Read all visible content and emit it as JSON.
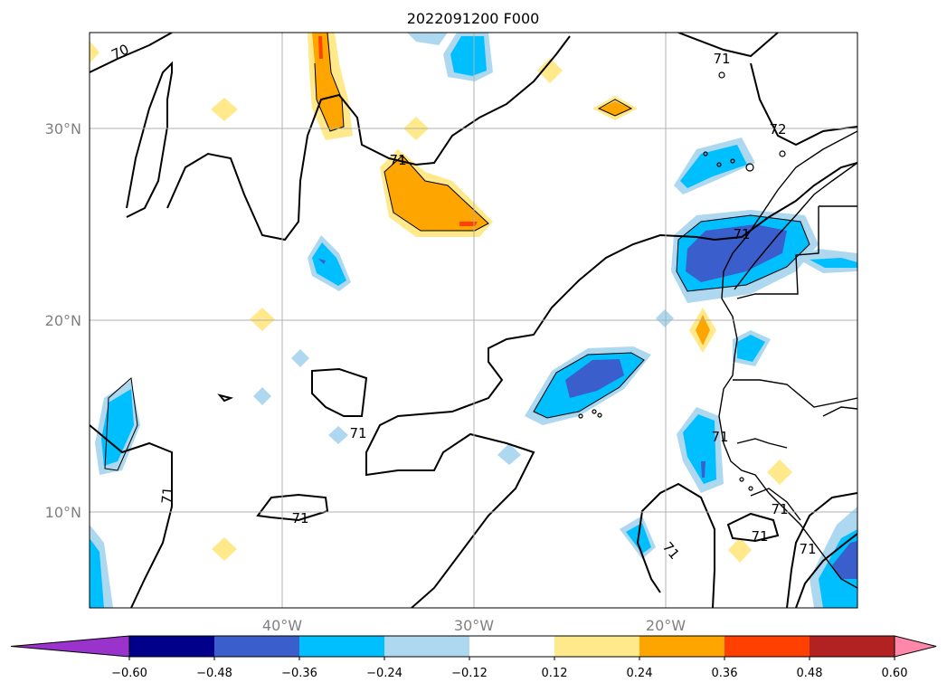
{
  "title": "2022091200 F000",
  "map": {
    "lat_range": [
      5,
      35
    ],
    "lon_range": [
      -50,
      -10
    ],
    "lat_ticks": [
      {
        "value": 30,
        "label": "30°N"
      },
      {
        "value": 20,
        "label": "20°N"
      },
      {
        "value": 10,
        "label": "10°N"
      }
    ],
    "lon_ticks": [
      {
        "value": -40,
        "label": "40°W"
      },
      {
        "value": -30,
        "label": "30°W"
      },
      {
        "value": -20,
        "label": "20°W"
      }
    ],
    "gridlines": true,
    "contour_labels": [
      "70",
      "71",
      "71",
      "71",
      "71",
      "71",
      "71",
      "71",
      "71",
      "71",
      "71",
      "71",
      "72"
    ]
  },
  "colorbar": {
    "colors": [
      "#9933cc",
      "#00008b",
      "#3a5fcd",
      "#00bfff",
      "#add8f0",
      "#ffffff",
      "#ffe98a",
      "#ffa500",
      "#ff4000",
      "#b22222",
      "#ff88aa"
    ],
    "labels": [
      "−0.60",
      "−0.48",
      "−0.36",
      "−0.24",
      "−0.12",
      "0.12",
      "0.24",
      "0.36",
      "0.48",
      "0.60"
    ]
  }
}
